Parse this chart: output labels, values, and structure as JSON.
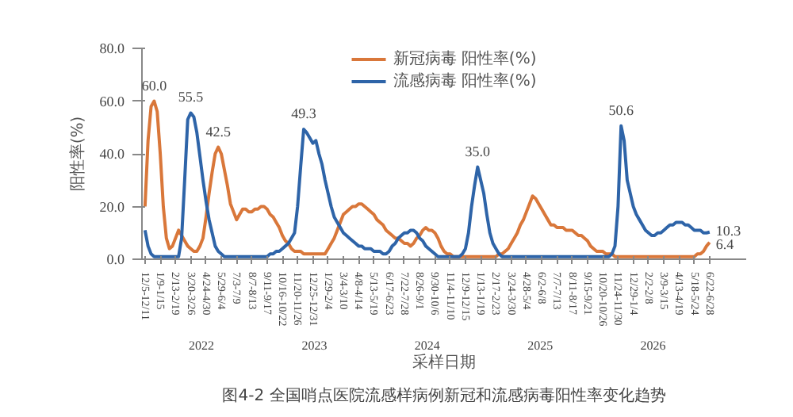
{
  "chart_data": {
    "type": "line",
    "title": "图4-2 全国哨点医院流感样病例新冠和流感病毒阳性率变化趋势",
    "xlabel": "采样日期",
    "ylabel": "阳性率(%)",
    "ylim": [
      0,
      80
    ],
    "yticks": [
      {
        "value": 0,
        "label": "0.0"
      },
      {
        "value": 20,
        "label": "20.0"
      },
      {
        "value": 40,
        "label": "40.0"
      },
      {
        "value": 60,
        "label": "60.0"
      },
      {
        "value": 80,
        "label": "80.0"
      }
    ],
    "categories": [
      "12/5-12/11",
      null,
      null,
      null,
      null,
      "1/9-1/15",
      null,
      null,
      null,
      null,
      "2/13-2/19",
      null,
      null,
      null,
      null,
      "3/20-3/26",
      null,
      null,
      null,
      null,
      "4/24-4/30",
      null,
      null,
      null,
      null,
      "5/29-6/4",
      null,
      null,
      null,
      null,
      "7/3-7/9",
      null,
      null,
      null,
      null,
      "8/7-8/13",
      null,
      null,
      null,
      null,
      "9/11-9/17",
      null,
      null,
      null,
      null,
      "10/16-10/22",
      null,
      null,
      null,
      null,
      "11/20-11/26",
      null,
      null,
      null,
      null,
      "12/25-12/31",
      null,
      null,
      null,
      null,
      "1/29-2/4",
      null,
      null,
      null,
      null,
      "3/4-3/10",
      null,
      null,
      null,
      null,
      "4/8-4/14",
      null,
      null,
      null,
      null,
      "5/13-5/19",
      null,
      null,
      null,
      null,
      "6/17-6/23",
      null,
      null,
      null,
      null,
      "7/22-7/28",
      null,
      null,
      null,
      null,
      "8/26-9/1",
      null,
      null,
      null,
      null,
      "9/30-10/6",
      null,
      null,
      null,
      null,
      "11/4-11/10",
      null,
      null,
      null,
      null,
      "12/9-12/15",
      null,
      null,
      null,
      null,
      "1/13-1/19",
      null,
      null,
      null,
      null,
      "2/17-2/23",
      null,
      null,
      null,
      null,
      "3/24-3/30",
      null,
      null,
      null,
      null,
      "4/28-5/4",
      null,
      null,
      null,
      null,
      "6/2-6/8",
      null,
      null,
      null,
      null,
      "7/7-7/13",
      null,
      null,
      null,
      null,
      "8/11-8/17",
      null,
      null,
      null,
      null,
      "9/15-9/21",
      null,
      null,
      null,
      null,
      "10/20-10/26",
      null,
      null,
      null,
      null,
      "11/24-11/30",
      null,
      null,
      null,
      null,
      "12/29-1/4",
      null,
      null,
      null,
      null,
      "2/2-2/8",
      null,
      null,
      null,
      null,
      "3/9-3/15",
      null,
      null,
      null,
      null,
      "4/13-4/19",
      null,
      null,
      null,
      null,
      "5/18-5/24",
      null,
      null,
      null,
      null,
      "6/22-6/28"
    ],
    "legend": "top",
    "marker": "none",
    "line_style": "solid",
    "series": [
      {
        "name": "新冠病毒 阳性率(%)",
        "color": "#d9773a",
        "values": [
          20,
          45,
          58,
          60,
          56,
          40,
          20,
          8,
          4,
          5,
          8,
          11,
          9,
          7,
          5,
          4,
          3,
          3,
          5,
          8,
          16,
          25,
          33,
          40,
          42.5,
          40,
          34,
          28,
          21,
          18,
          15,
          17,
          19,
          19,
          18,
          18,
          19,
          19,
          20,
          20,
          19,
          17,
          16,
          14,
          12,
          9,
          7,
          6,
          4,
          3,
          3,
          3,
          2,
          2,
          2,
          2,
          2,
          2,
          2,
          2,
          4,
          6,
          8,
          11,
          14,
          17,
          18,
          19,
          20,
          20,
          21,
          21,
          20,
          19,
          18,
          17,
          15,
          14,
          13,
          11,
          10,
          9,
          8,
          8,
          7,
          6,
          6,
          5,
          6,
          8,
          9,
          11,
          12,
          11,
          11,
          10,
          8,
          5,
          3,
          2,
          2,
          1,
          1,
          1,
          1,
          1,
          1,
          1,
          1,
          1,
          1,
          1,
          1,
          1,
          1,
          1,
          2,
          2,
          3,
          4,
          6,
          8,
          10,
          13,
          15,
          18,
          21,
          24,
          23,
          21,
          19,
          17,
          15,
          13,
          13,
          12,
          12,
          12,
          11,
          11,
          11,
          10,
          9,
          9,
          8,
          7,
          5,
          4,
          3,
          3,
          3,
          2,
          2,
          2,
          1,
          1,
          1,
          1,
          1,
          1,
          1,
          1,
          1,
          1,
          1,
          1,
          1,
          1,
          1,
          1,
          1,
          1,
          1,
          1,
          1,
          1,
          1,
          1,
          1,
          1,
          1,
          2,
          2,
          3,
          5,
          6.4
        ],
        "value_labels": [
          null,
          null,
          null,
          "60.0",
          null,
          null,
          null,
          null,
          null,
          null,
          null,
          null,
          null,
          null,
          null,
          null,
          null,
          null,
          null,
          null,
          null,
          null,
          null,
          null,
          "42.5",
          null,
          null,
          null,
          null,
          null,
          null,
          null,
          null,
          null,
          null,
          null,
          null,
          null,
          null,
          null,
          null,
          null,
          null,
          null,
          null,
          null,
          null,
          null,
          null,
          null,
          null,
          null,
          null,
          null,
          null,
          null,
          null,
          null,
          null,
          null,
          null,
          null,
          null,
          null,
          null,
          null,
          null,
          null,
          null,
          null,
          null,
          null,
          null,
          null,
          null,
          null,
          null,
          null,
          null,
          null,
          null,
          null,
          null,
          null,
          null,
          null,
          null,
          null,
          null,
          null,
          null,
          null,
          null,
          null,
          null,
          null,
          null,
          null,
          null,
          null,
          null,
          null,
          null,
          null,
          null,
          null,
          null,
          null,
          null,
          null,
          null,
          null,
          null,
          null,
          null,
          null,
          null,
          null,
          null,
          null,
          null,
          null,
          null,
          null,
          null,
          null,
          null,
          null,
          null,
          null,
          null,
          null,
          null,
          null,
          null,
          null,
          null,
          null,
          null,
          null,
          null,
          null,
          null,
          null,
          null,
          null,
          null,
          null,
          null,
          null,
          null,
          null,
          null,
          null,
          null,
          null,
          null,
          null,
          null,
          null,
          null,
          null,
          null,
          null,
          null,
          null,
          null,
          null,
          null,
          null,
          null,
          null,
          null,
          null,
          null,
          null,
          null,
          null,
          null,
          null,
          null,
          null,
          null,
          null,
          null,
          "6.4"
        ]
      },
      {
        "name": "流感病毒 阳性率(%)",
        "color": "#2e64a8",
        "values": [
          11,
          5,
          2,
          1,
          1,
          1,
          1,
          1,
          1,
          1,
          1,
          1,
          8,
          30,
          53,
          55.5,
          54,
          48,
          39,
          30,
          22,
          15,
          10,
          5,
          3,
          2,
          1,
          1,
          1,
          1,
          1,
          1,
          1,
          1,
          1,
          1,
          1,
          1,
          1,
          1,
          1,
          2,
          2,
          3,
          3,
          4,
          5,
          6,
          8,
          10,
          20,
          35,
          49.3,
          48,
          46,
          44,
          45,
          40,
          36,
          30,
          25,
          20,
          16,
          14,
          12,
          10,
          9,
          8,
          7,
          6,
          5,
          5,
          4,
          4,
          4,
          3,
          3,
          3,
          2,
          2,
          3,
          5,
          6,
          8,
          9,
          10,
          10,
          11,
          11,
          10,
          8,
          7,
          5,
          4,
          3,
          2,
          1,
          1,
          1,
          1,
          1,
          1,
          1,
          1,
          2,
          4,
          10,
          20,
          28,
          35,
          30,
          25,
          17,
          10,
          6,
          4,
          2,
          1,
          1,
          1,
          1,
          1,
          1,
          1,
          1,
          1,
          1,
          1,
          1,
          1,
          1,
          1,
          1,
          1,
          1,
          1,
          1,
          1,
          1,
          1,
          1,
          1,
          1,
          1,
          1,
          1,
          1,
          1,
          1,
          1,
          1,
          1,
          1,
          2,
          5,
          20,
          50.6,
          45,
          30,
          25,
          20,
          17,
          15,
          13,
          11,
          10,
          9,
          9,
          10,
          10,
          11,
          12,
          13,
          13,
          14,
          14,
          14,
          13,
          13,
          12,
          11,
          11,
          11,
          10,
          10,
          10.3
        ],
        "value_labels": [
          null,
          null,
          null,
          null,
          null,
          null,
          null,
          null,
          null,
          null,
          null,
          null,
          null,
          null,
          null,
          "55.5",
          null,
          null,
          null,
          null,
          null,
          null,
          null,
          null,
          null,
          null,
          null,
          null,
          null,
          null,
          null,
          null,
          null,
          null,
          null,
          null,
          null,
          null,
          null,
          null,
          null,
          null,
          null,
          null,
          null,
          null,
          null,
          null,
          null,
          null,
          null,
          null,
          "49.3",
          null,
          null,
          null,
          null,
          null,
          null,
          null,
          null,
          null,
          null,
          null,
          null,
          null,
          null,
          null,
          null,
          null,
          null,
          null,
          null,
          null,
          null,
          null,
          null,
          null,
          null,
          null,
          null,
          null,
          null,
          null,
          null,
          null,
          null,
          null,
          null,
          null,
          null,
          null,
          null,
          null,
          null,
          null,
          null,
          null,
          null,
          null,
          null,
          null,
          null,
          null,
          null,
          null,
          null,
          null,
          null,
          "35.0",
          null,
          null,
          null,
          null,
          null,
          null,
          null,
          null,
          null,
          null,
          null,
          null,
          null,
          null,
          null,
          null,
          null,
          null,
          null,
          null,
          null,
          null,
          null,
          null,
          null,
          null,
          null,
          null,
          null,
          null,
          null,
          null,
          null,
          null,
          null,
          null,
          null,
          null,
          null,
          null,
          null,
          null,
          null,
          null,
          null,
          null,
          "50.6",
          null,
          null,
          null,
          null,
          null,
          null,
          null,
          null,
          null,
          null,
          null,
          null,
          null,
          null,
          null,
          null,
          null,
          null,
          null,
          null,
          null,
          null,
          null,
          null,
          null,
          null,
          null,
          null,
          "10.3"
        ]
      }
    ],
    "annotations": [
      "2022",
      "2023",
      "2024",
      "2025",
      "2026"
    ]
  }
}
